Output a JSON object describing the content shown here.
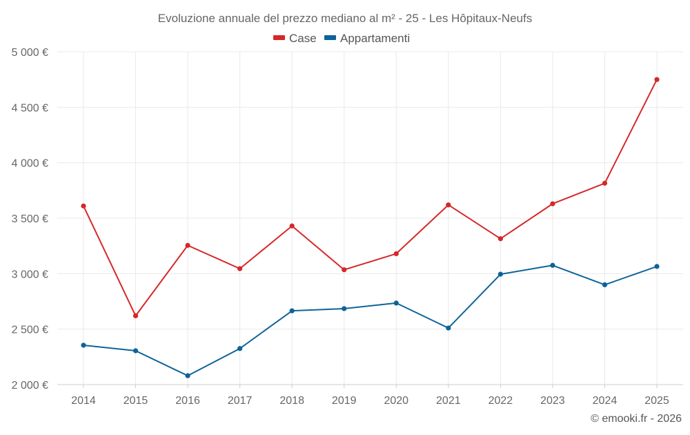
{
  "chart_data": {
    "type": "line",
    "title": "Evoluzione annuale del prezzo mediano al m² - 25 - Les Hôpitaux-Neufs",
    "categories": [
      "2014",
      "2015",
      "2016",
      "2017",
      "2018",
      "2019",
      "2020",
      "2021",
      "2022",
      "2023",
      "2024",
      "2025"
    ],
    "series": [
      {
        "name": "Case",
        "color": "#d62728",
        "values": [
          3610,
          2620,
          3255,
          3045,
          3430,
          3035,
          3180,
          3620,
          3315,
          3630,
          3815,
          4750
        ]
      },
      {
        "name": "Appartamenti",
        "color": "#0d6399",
        "values": [
          2355,
          2305,
          2080,
          2325,
          2665,
          2685,
          2735,
          2510,
          2995,
          3075,
          2900,
          3065
        ]
      }
    ],
    "ylim": [
      2000,
      5000
    ],
    "yticks": [
      2000,
      2500,
      3000,
      3500,
      4000,
      4500,
      5000
    ],
    "ytick_labels": [
      "2 000 €",
      "2 500 €",
      "3 000 €",
      "3 500 €",
      "4 000 €",
      "4 500 €",
      "5 000 €"
    ],
    "xlabel": "",
    "ylabel": "",
    "grid": true,
    "legend_position": "top-center",
    "credit": "© emooki.fr - 2026"
  }
}
